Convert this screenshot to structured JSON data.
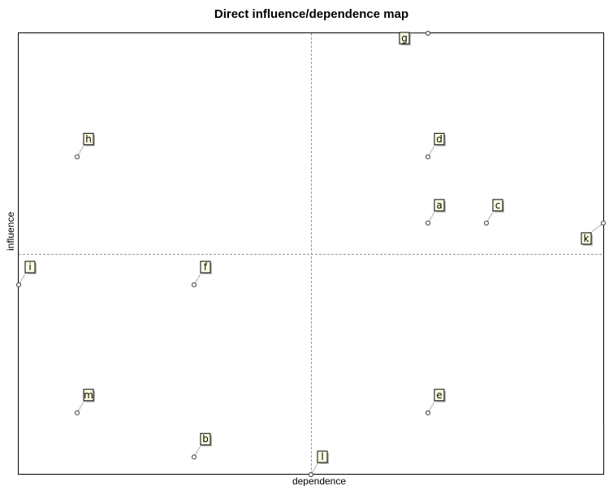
{
  "chart_data": {
    "type": "scatter",
    "title": "Direct influence/dependence map",
    "xlabel": "dependence",
    "ylabel": "influence",
    "points": [
      {
        "label": "g",
        "x": 0.7,
        "y": 1.0
      },
      {
        "label": "h",
        "x": 0.1,
        "y": 0.72
      },
      {
        "label": "d",
        "x": 0.7,
        "y": 0.72
      },
      {
        "label": "a",
        "x": 0.7,
        "y": 0.57
      },
      {
        "label": "c",
        "x": 0.8,
        "y": 0.57
      },
      {
        "label": "k",
        "x": 1.0,
        "y": 0.57
      },
      {
        "label": "i",
        "x": 0.0,
        "y": 0.43
      },
      {
        "label": "f",
        "x": 0.3,
        "y": 0.43
      },
      {
        "label": "m",
        "x": 0.1,
        "y": 0.14
      },
      {
        "label": "e",
        "x": 0.7,
        "y": 0.14
      },
      {
        "label": "b",
        "x": 0.3,
        "y": 0.04
      },
      {
        "label": "l",
        "x": 0.5,
        "y": 0.0
      }
    ],
    "xlim": [
      0,
      1
    ],
    "ylim": [
      0,
      1
    ],
    "quadrant_lines": {
      "x": 0.5,
      "y": 0.5
    },
    "grid": false,
    "legend": "none",
    "marker_color": "#555555",
    "label_box_fill": "#ffffe1"
  }
}
